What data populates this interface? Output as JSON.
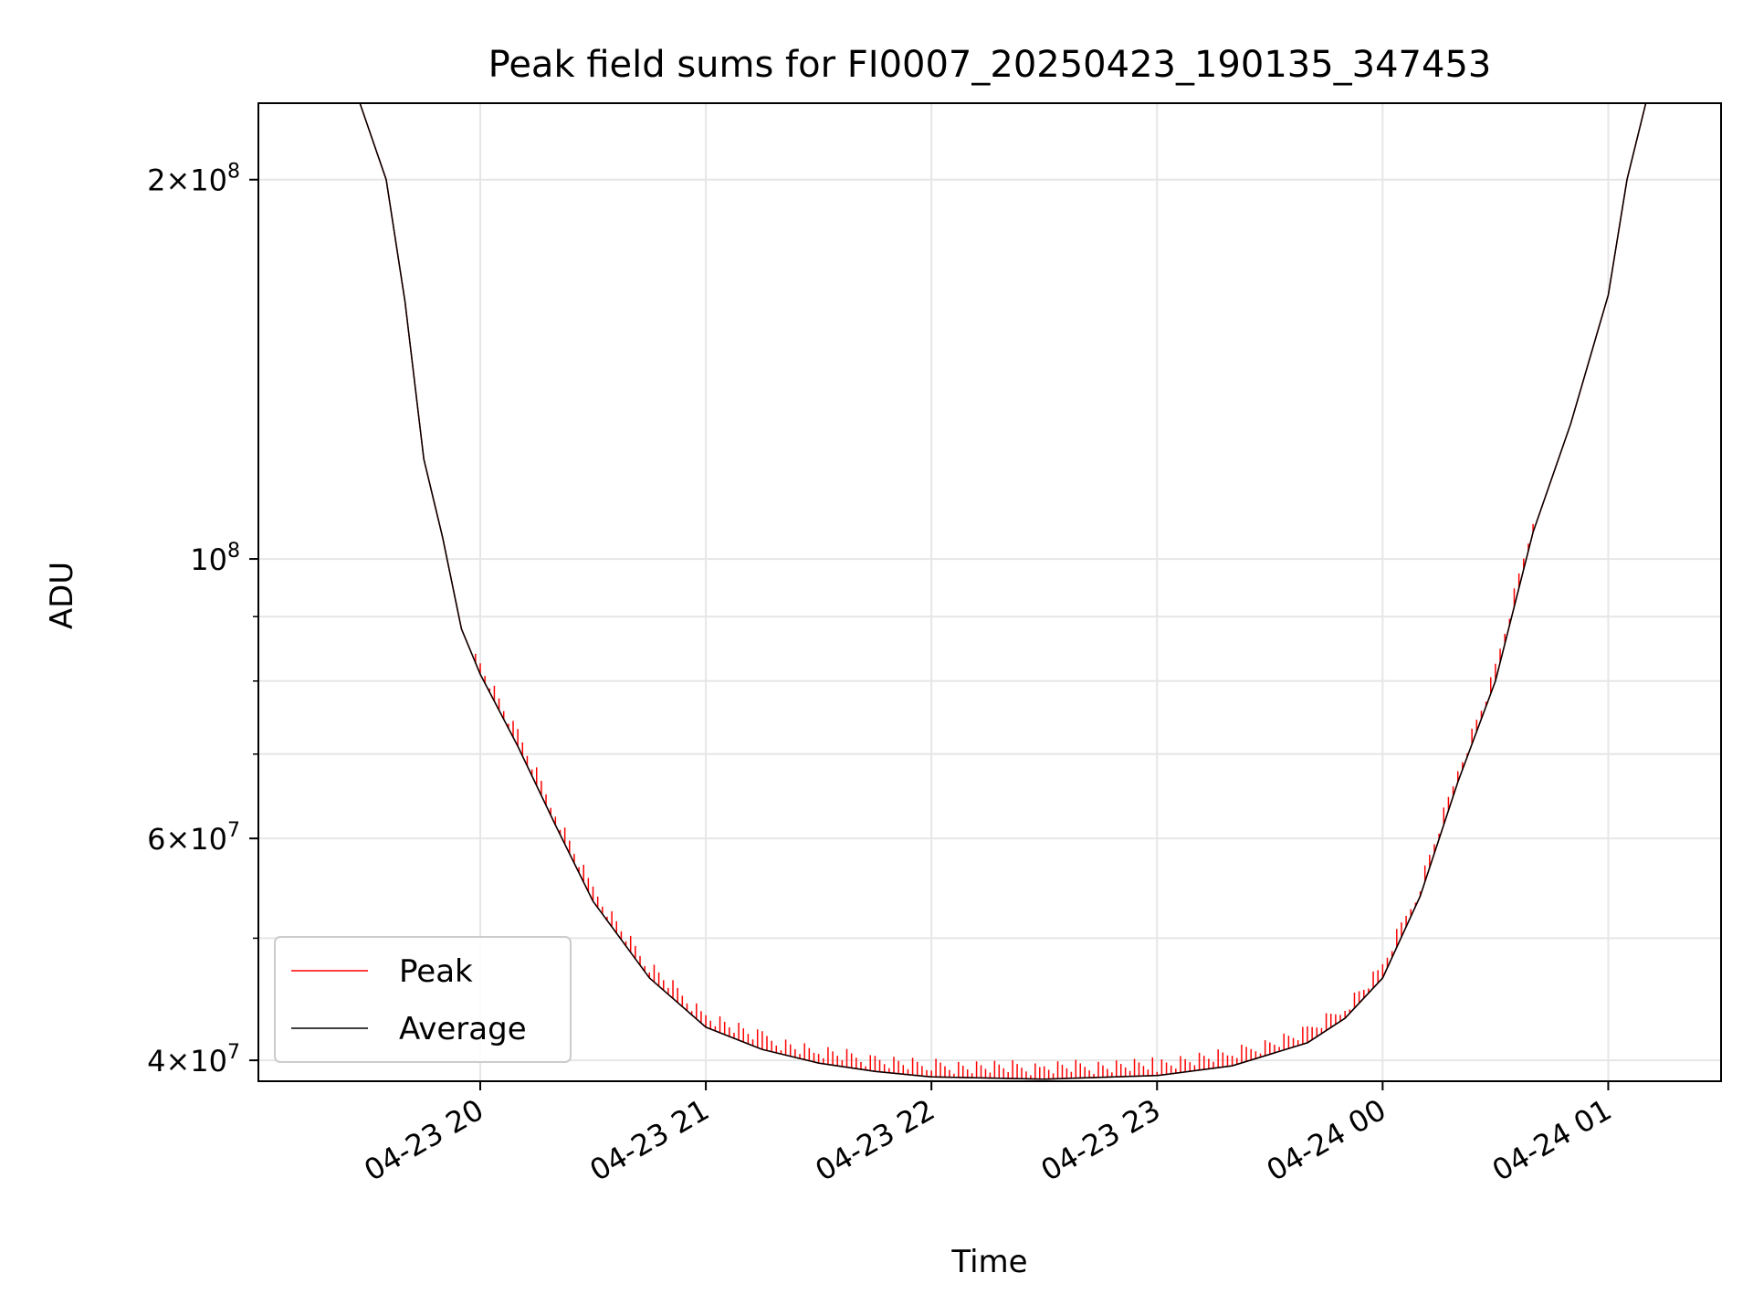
{
  "chart_data": {
    "type": "line",
    "title": "Peak field sums for FI0007_20250423_190135_347453",
    "xlabel": "Time",
    "ylabel": "ADU",
    "yscale": "log",
    "xlim": [
      "2025-04-23 19:01",
      "2025-04-24 01:30"
    ],
    "ylim": [
      38500000,
      230000000
    ],
    "x_ticks": [
      "04-23 20",
      "04-23 21",
      "04-23 22",
      "04-23 23",
      "04-24 00",
      "04-24 01"
    ],
    "y_ticks": [
      {
        "value": 40000000,
        "base": "4",
        "exp": "7"
      },
      {
        "value": 60000000,
        "base": "6",
        "exp": "7"
      },
      {
        "value": 100000000,
        "base": "",
        "exp": "8"
      },
      {
        "value": 200000000,
        "base": "2",
        "exp": "8"
      }
    ],
    "grid": true,
    "legend_position": "lower-left",
    "series": [
      {
        "name": "Peak",
        "color": "#ff0000",
        "note_style": "spiky",
        "x": [
          "2025-04-23 19:28",
          "2025-04-23 19:35",
          "2025-04-23 19:40",
          "2025-04-23 19:45",
          "2025-04-23 19:50",
          "2025-04-23 19:55",
          "2025-04-23 20:00",
          "2025-04-23 20:10",
          "2025-04-23 20:20",
          "2025-04-23 20:30",
          "2025-04-23 20:45",
          "2025-04-23 21:00",
          "2025-04-23 21:15",
          "2025-04-23 21:30",
          "2025-04-23 21:45",
          "2025-04-23 22:00",
          "2025-04-23 22:30",
          "2025-04-23 23:00",
          "2025-04-23 23:20",
          "2025-04-23 23:40",
          "2025-04-23 23:50",
          "2025-04-24 00:00",
          "2025-04-24 00:10",
          "2025-04-24 00:20",
          "2025-04-24 00:30",
          "2025-04-24 00:40",
          "2025-04-24 00:50",
          "2025-04-24 01:00",
          "2025-04-24 01:05",
          "2025-04-24 01:10"
        ],
        "y": [
          230000000,
          200000000,
          160000000,
          120000000,
          104000000,
          88000000,
          81000000,
          71000000,
          61500000,
          53500000,
          46500000,
          42500000,
          40800000,
          39800000,
          39200000,
          38800000,
          38650000,
          38900000,
          39600000,
          41300000,
          43200000,
          46500000,
          54000000,
          66500000,
          80000000,
          105000000,
          128000000,
          162000000,
          200000000,
          230000000
        ]
      },
      {
        "name": "Average",
        "color": "#000000",
        "x": [
          "2025-04-23 19:28",
          "2025-04-23 19:35",
          "2025-04-23 19:40",
          "2025-04-23 19:45",
          "2025-04-23 19:50",
          "2025-04-23 19:55",
          "2025-04-23 20:00",
          "2025-04-23 20:10",
          "2025-04-23 20:20",
          "2025-04-23 20:30",
          "2025-04-23 20:45",
          "2025-04-23 21:00",
          "2025-04-23 21:15",
          "2025-04-23 21:30",
          "2025-04-23 21:45",
          "2025-04-23 22:00",
          "2025-04-23 22:30",
          "2025-04-23 23:00",
          "2025-04-23 23:20",
          "2025-04-23 23:40",
          "2025-04-23 23:50",
          "2025-04-24 00:00",
          "2025-04-24 00:10",
          "2025-04-24 00:20",
          "2025-04-24 00:30",
          "2025-04-24 00:40",
          "2025-04-24 00:50",
          "2025-04-24 01:00",
          "2025-04-24 01:05",
          "2025-04-24 01:10"
        ],
        "y": [
          230000000,
          200000000,
          160000000,
          120000000,
          104000000,
          88000000,
          81000000,
          71000000,
          61500000,
          53500000,
          46500000,
          42500000,
          40800000,
          39800000,
          39200000,
          38800000,
          38650000,
          38900000,
          39600000,
          41300000,
          43200000,
          46500000,
          54000000,
          66500000,
          80000000,
          105000000,
          128000000,
          162000000,
          200000000,
          230000000
        ]
      }
    ]
  }
}
